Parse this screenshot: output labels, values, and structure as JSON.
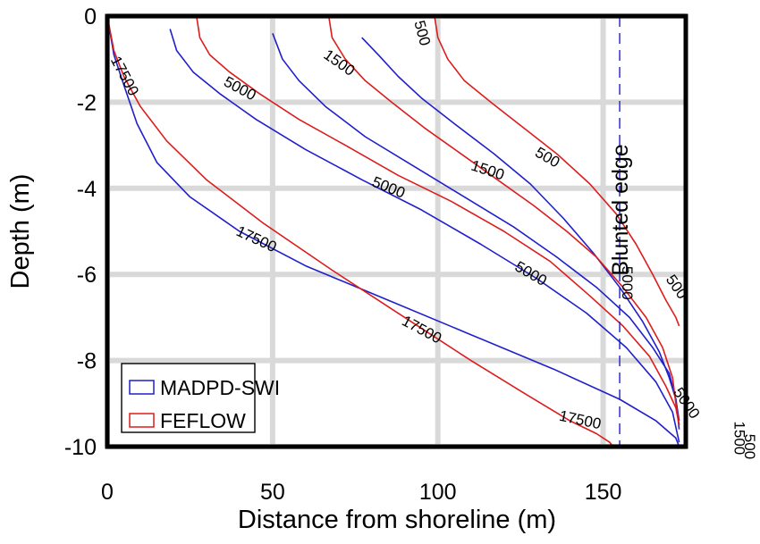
{
  "chart_data": {
    "type": "line",
    "title": "",
    "xlabel": "Distance from shoreline (m)",
    "ylabel": "Depth (m)",
    "xlim": [
      0,
      175
    ],
    "ylim": [
      -10,
      0
    ],
    "xticks": [
      0,
      50,
      100,
      150
    ],
    "yticks": [
      0,
      -2,
      -4,
      -6,
      -8,
      -10
    ],
    "grid": true,
    "legend": {
      "placement": "bottom-left",
      "entries": [
        {
          "label": "MADPD-SWI",
          "color": "#1f1fcc"
        },
        {
          "label": "FEFLOW",
          "color": "#dd1c1c"
        }
      ]
    },
    "annotations": [
      {
        "text": "Blunted edge",
        "x": 155,
        "orientation": "vertical",
        "style": "dashed"
      }
    ],
    "series": [
      {
        "model": "MADPD-SWI",
        "color": "#1f1fcc",
        "level": "500",
        "x": [
          77,
          82,
          88,
          95,
          105,
          117,
          128,
          138,
          147,
          155,
          162,
          167,
          170,
          172,
          173
        ],
        "y": [
          -0.5,
          -0.9,
          -1.4,
          -1.9,
          -2.5,
          -3.2,
          -3.9,
          -4.7,
          -5.5,
          -6.3,
          -7.1,
          -7.8,
          -8.4,
          -8.9,
          -9.4
        ]
      },
      {
        "model": "MADPD-SWI",
        "color": "#1f1fcc",
        "level": "1500",
        "x": [
          50,
          53,
          58,
          66,
          78,
          93,
          108,
          123,
          136,
          148,
          158,
          165,
          170,
          172,
          173
        ],
        "y": [
          -0.4,
          -1.0,
          -1.5,
          -2.1,
          -2.8,
          -3.5,
          -4.2,
          -4.9,
          -5.6,
          -6.3,
          -7.0,
          -7.7,
          -8.3,
          -8.9,
          -9.6
        ]
      },
      {
        "model": "MADPD-SWI",
        "color": "#1f1fcc",
        "level": "5000",
        "x": [
          19,
          21,
          26,
          34,
          45,
          60,
          77,
          95,
          113,
          130,
          145,
          157,
          166,
          171,
          173
        ],
        "y": [
          -0.3,
          -0.8,
          -1.3,
          -1.8,
          -2.4,
          -3.1,
          -3.8,
          -4.5,
          -5.3,
          -6.1,
          -6.9,
          -7.7,
          -8.5,
          -9.2,
          -9.9
        ]
      },
      {
        "model": "MADPD-SWI",
        "color": "#1f1fcc",
        "level": "17500",
        "x": [
          0,
          2,
          5,
          9,
          15,
          25,
          40,
          60,
          85,
          110,
          135,
          155,
          166,
          172,
          173
        ],
        "y": [
          0,
          -0.9,
          -1.6,
          -2.5,
          -3.4,
          -4.2,
          -5.0,
          -5.8,
          -6.6,
          -7.4,
          -8.2,
          -8.9,
          -9.4,
          -9.8,
          -10
        ]
      },
      {
        "model": "FEFLOW",
        "color": "#dd1c1c",
        "level": "500",
        "x": [
          99,
          100,
          103,
          108,
          116,
          126,
          136,
          146,
          154,
          160,
          165,
          169,
          172,
          173
        ],
        "y": [
          0,
          -0.5,
          -1.0,
          -1.5,
          -2.0,
          -2.6,
          -3.2,
          -3.9,
          -4.6,
          -5.3,
          -6.0,
          -6.6,
          -7.0,
          -7.2
        ]
      },
      {
        "model": "FEFLOW",
        "color": "#dd1c1c",
        "level": "1500",
        "x": [
          67,
          68,
          72,
          78,
          86,
          96,
          107,
          118,
          129,
          139,
          148,
          156,
          163,
          168,
          171,
          172,
          173
        ],
        "y": [
          0,
          -0.5,
          -1.0,
          -1.5,
          -2.0,
          -2.6,
          -3.2,
          -3.8,
          -4.4,
          -5.0,
          -5.6,
          -6.3,
          -7.0,
          -7.7,
          -8.4,
          -9.0,
          -9.5
        ]
      },
      {
        "model": "FEFLOW",
        "color": "#dd1c1c",
        "level": "5000",
        "x": [
          27,
          28,
          31,
          37,
          46,
          58,
          72,
          88,
          104,
          120,
          134,
          146,
          156,
          164,
          169,
          172,
          173
        ],
        "y": [
          0,
          -0.5,
          -0.9,
          -1.3,
          -1.8,
          -2.4,
          -3.0,
          -3.7,
          -4.3,
          -5.0,
          -5.7,
          -6.5,
          -7.2,
          -7.9,
          -8.6,
          -9.1,
          -9.5
        ]
      },
      {
        "model": "FEFLOW",
        "color": "#dd1c1c",
        "level": "17500",
        "x": [
          0,
          2,
          5,
          10,
          18,
          30,
          47,
          68,
          90,
          110,
          127,
          140,
          148,
          152,
          153
        ],
        "y": [
          0,
          -0.8,
          -1.4,
          -2.1,
          -2.9,
          -3.8,
          -4.8,
          -5.9,
          -7.0,
          -8.0,
          -8.8,
          -9.4,
          -9.7,
          -9.9,
          -10
        ]
      }
    ],
    "contour_labels": [
      {
        "text": "500",
        "x": 95,
        "y": -0.4,
        "angle": 75
      },
      {
        "text": "1500",
        "x": 70,
        "y": -1.1,
        "angle": 35
      },
      {
        "text": "5000",
        "x": 40,
        "y": -1.7,
        "angle": 28
      },
      {
        "text": "17500",
        "x": 5,
        "y": -1.4,
        "angle": 62
      },
      {
        "text": "500",
        "x": 133,
        "y": -3.3,
        "angle": 30
      },
      {
        "text": "1500",
        "x": 115,
        "y": -3.6,
        "angle": 18
      },
      {
        "text": "5000",
        "x": 85,
        "y": -4.0,
        "angle": 22
      },
      {
        "text": "17500",
        "x": 45,
        "y": -5.2,
        "angle": 25
      },
      {
        "text": "5000",
        "x": 128,
        "y": -6.0,
        "angle": 30
      },
      {
        "text": "17500",
        "x": 95,
        "y": -7.3,
        "angle": 28
      },
      {
        "text": "500",
        "x": 172,
        "y": -6.3,
        "angle": 55
      },
      {
        "text": "5000",
        "x": 157,
        "y": -6.2,
        "angle": 90
      },
      {
        "text": "5000",
        "x": 175,
        "y": -9.0,
        "angle": 55
      },
      {
        "text": "17500",
        "x": 143,
        "y": -9.4,
        "angle": 12
      },
      {
        "text": "1500",
        "x": 191,
        "y": -9.8,
        "angle": 90
      },
      {
        "text": "500",
        "x": 194,
        "y": -10.0,
        "angle": 90
      }
    ]
  }
}
